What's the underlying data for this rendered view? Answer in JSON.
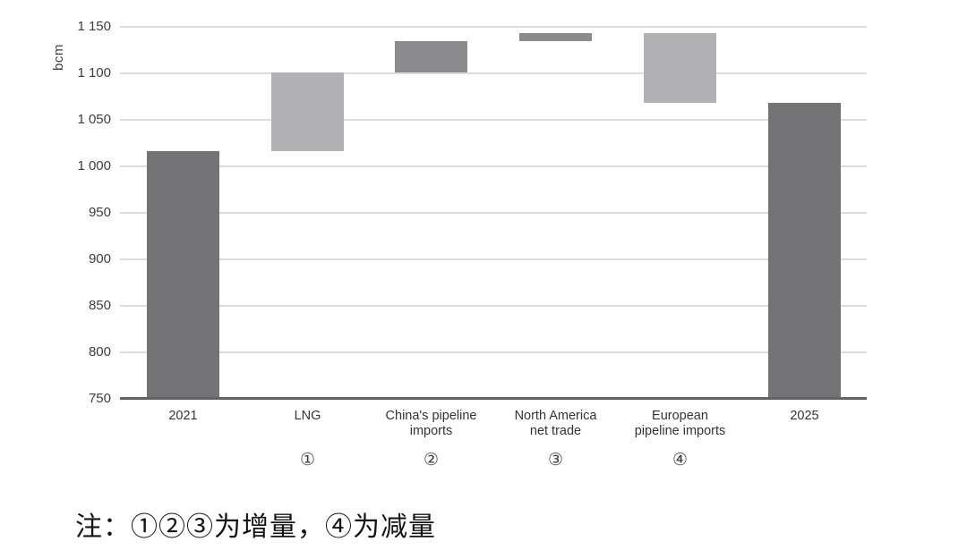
{
  "chart_data": {
    "type": "bar",
    "subtype": "waterfall",
    "title": "",
    "xlabel": "",
    "ylabel": "bcm",
    "ylim": [
      750,
      1150
    ],
    "ytick_step": 50,
    "yticks": [
      {
        "value": 750,
        "label": "750"
      },
      {
        "value": 800,
        "label": "800"
      },
      {
        "value": 850,
        "label": "850"
      },
      {
        "value": 900,
        "label": "900"
      },
      {
        "value": 950,
        "label": "950"
      },
      {
        "value": 1000,
        "label": "1 000"
      },
      {
        "value": 1050,
        "label": "1 050"
      },
      {
        "value": 1100,
        "label": "1 100"
      },
      {
        "value": 1150,
        "label": "1 150"
      }
    ],
    "grid": "horizontal",
    "legend": "none",
    "categories": [
      "2021",
      "LNG",
      "China's pipeline imports",
      "North America net trade",
      "European pipeline imports",
      "2025"
    ],
    "category_lines": [
      [
        "2021"
      ],
      [
        "LNG"
      ],
      [
        "China's pipeline",
        "imports"
      ],
      [
        "North America",
        "net trade"
      ],
      [
        "European",
        "pipeline imports"
      ],
      [
        "2025"
      ]
    ],
    "markers": [
      "",
      "①",
      "②",
      "③",
      "④",
      ""
    ],
    "bars": [
      {
        "name": "2021",
        "from": 750,
        "to": 1016,
        "change": null,
        "shade": "dark"
      },
      {
        "name": "LNG",
        "from": 1016,
        "to": 1101,
        "change": 85,
        "shade": "light"
      },
      {
        "name": "China's pipeline imports",
        "from": 1101,
        "to": 1135,
        "change": 34,
        "shade": "mid"
      },
      {
        "name": "North America net trade",
        "from": 1135,
        "to": 1143,
        "change": 8,
        "shade": "mid"
      },
      {
        "name": "European pipeline imports",
        "from": 1068,
        "to": 1143,
        "change": -75,
        "shade": "light"
      },
      {
        "name": "2025",
        "from": 750,
        "to": 1068,
        "change": null,
        "shade": "dark"
      }
    ],
    "colors": {
      "dark": "#737376",
      "mid": "#8b8b8e",
      "light": "#b1b1b3",
      "gridline": "#dcdcdc",
      "axisline": "#636366",
      "text": "#3d3d3d"
    }
  },
  "note": {
    "text": "注：①②③为增量，④为减量"
  }
}
